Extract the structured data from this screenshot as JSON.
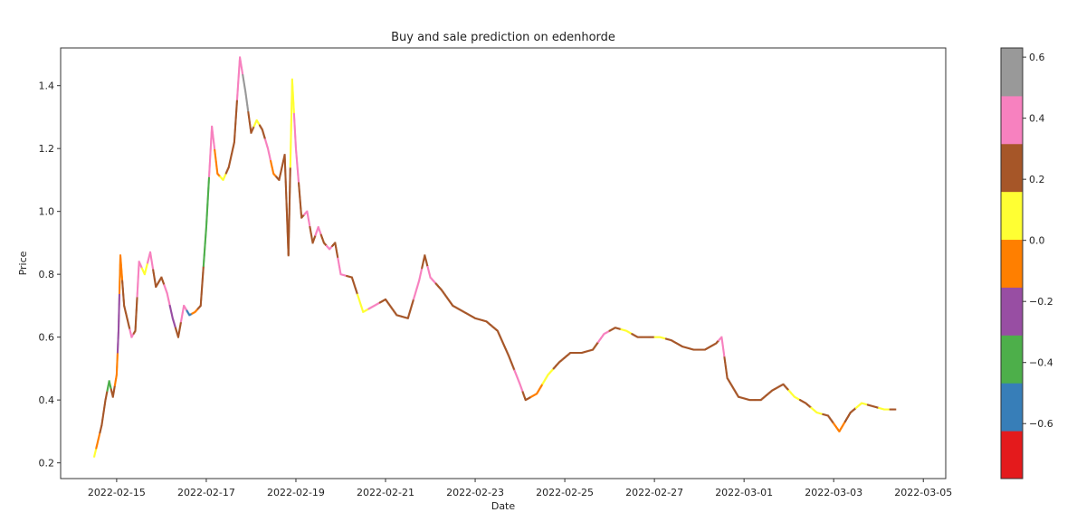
{
  "chart_data": {
    "type": "scatter",
    "title": "Buy and sale prediction on edenhorde",
    "xlabel": "Date",
    "ylabel": "Price",
    "x_ticks": [
      "2022-02-15",
      "2022-02-17",
      "2022-02-19",
      "2022-02-21",
      "2022-02-23",
      "2022-02-25",
      "2022-02-27",
      "2022-03-01",
      "2022-03-03",
      "2022-03-05"
    ],
    "xlim": [
      "2022-02-13T18:00",
      "2022-03-05T12:00"
    ],
    "y_ticks": [
      "0.2",
      "0.4",
      "0.6",
      "0.8",
      "1.0",
      "1.2",
      "1.4"
    ],
    "ylim": [
      0.15,
      1.52
    ],
    "grid": false,
    "colorbar": {
      "ticks": [
        "0.6",
        "0.4",
        "0.2",
        "0.0",
        "−0.2",
        "−0.4",
        "−0.6"
      ],
      "tick_values": [
        0.6,
        0.4,
        0.2,
        0.0,
        -0.2,
        -0.4,
        -0.6
      ],
      "range": [
        -0.78,
        0.63
      ],
      "colors": [
        "#e41a1c",
        "#377eb8",
        "#4daf4a",
        "#984ea3",
        "#ff7f00",
        "#ffff33",
        "#a65628",
        "#f781bf",
        "#999999"
      ]
    },
    "series": [
      {
        "points": [
          [
            "2022-02-14T12:00",
            0.22,
            0.1
          ],
          [
            "2022-02-14T14:00",
            0.27,
            0.0
          ],
          [
            "2022-02-14T16:00",
            0.32,
            0.3
          ],
          [
            "2022-02-14T18:00",
            0.4,
            0.2
          ],
          [
            "2022-02-14T20:00",
            0.46,
            -0.4
          ],
          [
            "2022-02-14T22:00",
            0.41,
            0.2
          ],
          [
            "2022-02-15T00:00",
            0.48,
            0.0
          ],
          [
            "2022-02-15T01:00",
            0.62,
            -0.2
          ],
          [
            "2022-02-15T02:00",
            0.86,
            0.0
          ],
          [
            "2022-02-15T04:00",
            0.7,
            0.3
          ],
          [
            "2022-02-15T06:00",
            0.65,
            0.2
          ],
          [
            "2022-02-15T08:00",
            0.6,
            0.4
          ],
          [
            "2022-02-15T10:00",
            0.62,
            0.3
          ],
          [
            "2022-02-15T12:00",
            0.84,
            0.4
          ],
          [
            "2022-02-15T15:00",
            0.8,
            0.1
          ],
          [
            "2022-02-15T18:00",
            0.87,
            0.4
          ],
          [
            "2022-02-15T21:00",
            0.76,
            0.3
          ],
          [
            "2022-02-16T00:00",
            0.79,
            0.2
          ],
          [
            "2022-02-16T03:00",
            0.74,
            0.4
          ],
          [
            "2022-02-16T06:00",
            0.66,
            -0.2
          ],
          [
            "2022-02-16T09:00",
            0.6,
            0.3
          ],
          [
            "2022-02-16T12:00",
            0.7,
            0.4
          ],
          [
            "2022-02-16T15:00",
            0.67,
            -0.6
          ],
          [
            "2022-02-16T18:00",
            0.68,
            0.0
          ],
          [
            "2022-02-16T21:00",
            0.7,
            0.2
          ],
          [
            "2022-02-17T00:00",
            0.95,
            -0.4
          ],
          [
            "2022-02-17T03:00",
            1.27,
            0.4
          ],
          [
            "2022-02-17T06:00",
            1.12,
            0.0
          ],
          [
            "2022-02-17T09:00",
            1.1,
            0.1
          ],
          [
            "2022-02-17T12:00",
            1.14,
            0.3
          ],
          [
            "2022-02-17T15:00",
            1.22,
            0.2
          ],
          [
            "2022-02-17T18:00",
            1.49,
            0.4
          ],
          [
            "2022-02-17T21:00",
            1.38,
            0.5
          ],
          [
            "2022-02-18T00:00",
            1.25,
            0.3
          ],
          [
            "2022-02-18T03:00",
            1.29,
            0.1
          ],
          [
            "2022-02-18T06:00",
            1.26,
            0.2
          ],
          [
            "2022-02-18T09:00",
            1.2,
            0.4
          ],
          [
            "2022-02-18T12:00",
            1.12,
            0.0
          ],
          [
            "2022-02-18T15:00",
            1.1,
            0.3
          ],
          [
            "2022-02-18T18:00",
            1.18,
            0.2
          ],
          [
            "2022-02-18T20:00",
            0.86,
            0.2
          ],
          [
            "2022-02-18T22:00",
            1.42,
            0.1
          ],
          [
            "2022-02-19T00:00",
            1.2,
            0.4
          ],
          [
            "2022-02-19T03:00",
            0.98,
            0.3
          ],
          [
            "2022-02-19T06:00",
            1.0,
            0.4
          ],
          [
            "2022-02-19T09:00",
            0.9,
            0.2
          ],
          [
            "2022-02-19T12:00",
            0.95,
            0.4
          ],
          [
            "2022-02-19T15:00",
            0.9,
            0.3
          ],
          [
            "2022-02-19T18:00",
            0.88,
            0.4
          ],
          [
            "2022-02-19T21:00",
            0.9,
            0.2
          ],
          [
            "2022-02-20T00:00",
            0.8,
            0.4
          ],
          [
            "2022-02-20T06:00",
            0.79,
            0.2
          ],
          [
            "2022-02-20T12:00",
            0.68,
            0.1
          ],
          [
            "2022-02-20T18:00",
            0.7,
            0.4
          ],
          [
            "2022-02-21T00:00",
            0.72,
            0.3
          ],
          [
            "2022-02-21T06:00",
            0.67,
            0.2
          ],
          [
            "2022-02-21T12:00",
            0.66,
            0.2
          ],
          [
            "2022-02-21T18:00",
            0.78,
            0.4
          ],
          [
            "2022-02-21T21:00",
            0.86,
            0.2
          ],
          [
            "2022-02-22T00:00",
            0.79,
            0.4
          ],
          [
            "2022-02-22T06:00",
            0.75,
            0.2
          ],
          [
            "2022-02-22T12:00",
            0.7,
            0.2
          ],
          [
            "2022-02-22T18:00",
            0.68,
            0.2
          ],
          [
            "2022-02-23T00:00",
            0.66,
            0.2
          ],
          [
            "2022-02-23T06:00",
            0.65,
            0.2
          ],
          [
            "2022-02-23T12:00",
            0.62,
            0.2
          ],
          [
            "2022-02-23T18:00",
            0.54,
            0.2
          ],
          [
            "2022-02-24T00:00",
            0.45,
            0.4
          ],
          [
            "2022-02-24T03:00",
            0.4,
            0.2
          ],
          [
            "2022-02-24T09:00",
            0.42,
            0.0
          ],
          [
            "2022-02-24T15:00",
            0.48,
            0.1
          ],
          [
            "2022-02-24T21:00",
            0.52,
            0.2
          ],
          [
            "2022-02-25T03:00",
            0.55,
            0.2
          ],
          [
            "2022-02-25T09:00",
            0.55,
            0.2
          ],
          [
            "2022-02-25T15:00",
            0.56,
            0.2
          ],
          [
            "2022-02-25T21:00",
            0.61,
            0.4
          ],
          [
            "2022-02-26T03:00",
            0.63,
            0.2
          ],
          [
            "2022-02-26T09:00",
            0.62,
            0.1
          ],
          [
            "2022-02-26T15:00",
            0.6,
            0.2
          ],
          [
            "2022-02-26T21:00",
            0.6,
            0.2
          ],
          [
            "2022-02-27T03:00",
            0.6,
            0.1
          ],
          [
            "2022-02-27T09:00",
            0.59,
            0.2
          ],
          [
            "2022-02-27T15:00",
            0.57,
            0.2
          ],
          [
            "2022-02-27T21:00",
            0.56,
            0.2
          ],
          [
            "2022-02-28T03:00",
            0.56,
            0.2
          ],
          [
            "2022-02-28T09:00",
            0.58,
            0.2
          ],
          [
            "2022-02-28T12:00",
            0.6,
            0.4
          ],
          [
            "2022-02-28T15:00",
            0.47,
            0.2
          ],
          [
            "2022-02-28T21:00",
            0.41,
            0.2
          ],
          [
            "2022-03-01T03:00",
            0.4,
            0.2
          ],
          [
            "2022-03-01T09:00",
            0.4,
            0.2
          ],
          [
            "2022-03-01T15:00",
            0.43,
            0.2
          ],
          [
            "2022-03-01T21:00",
            0.45,
            0.2
          ],
          [
            "2022-03-02T03:00",
            0.41,
            0.1
          ],
          [
            "2022-03-02T09:00",
            0.39,
            0.2
          ],
          [
            "2022-03-02T15:00",
            0.36,
            0.1
          ],
          [
            "2022-03-02T21:00",
            0.35,
            0.2
          ],
          [
            "2022-03-03T03:00",
            0.3,
            0.0
          ],
          [
            "2022-03-03T09:00",
            0.36,
            0.2
          ],
          [
            "2022-03-03T15:00",
            0.39,
            0.1
          ],
          [
            "2022-03-03T21:00",
            0.38,
            0.2
          ],
          [
            "2022-03-04T03:00",
            0.37,
            0.1
          ],
          [
            "2022-03-04T09:00",
            0.37,
            0.2
          ]
        ]
      }
    ]
  }
}
